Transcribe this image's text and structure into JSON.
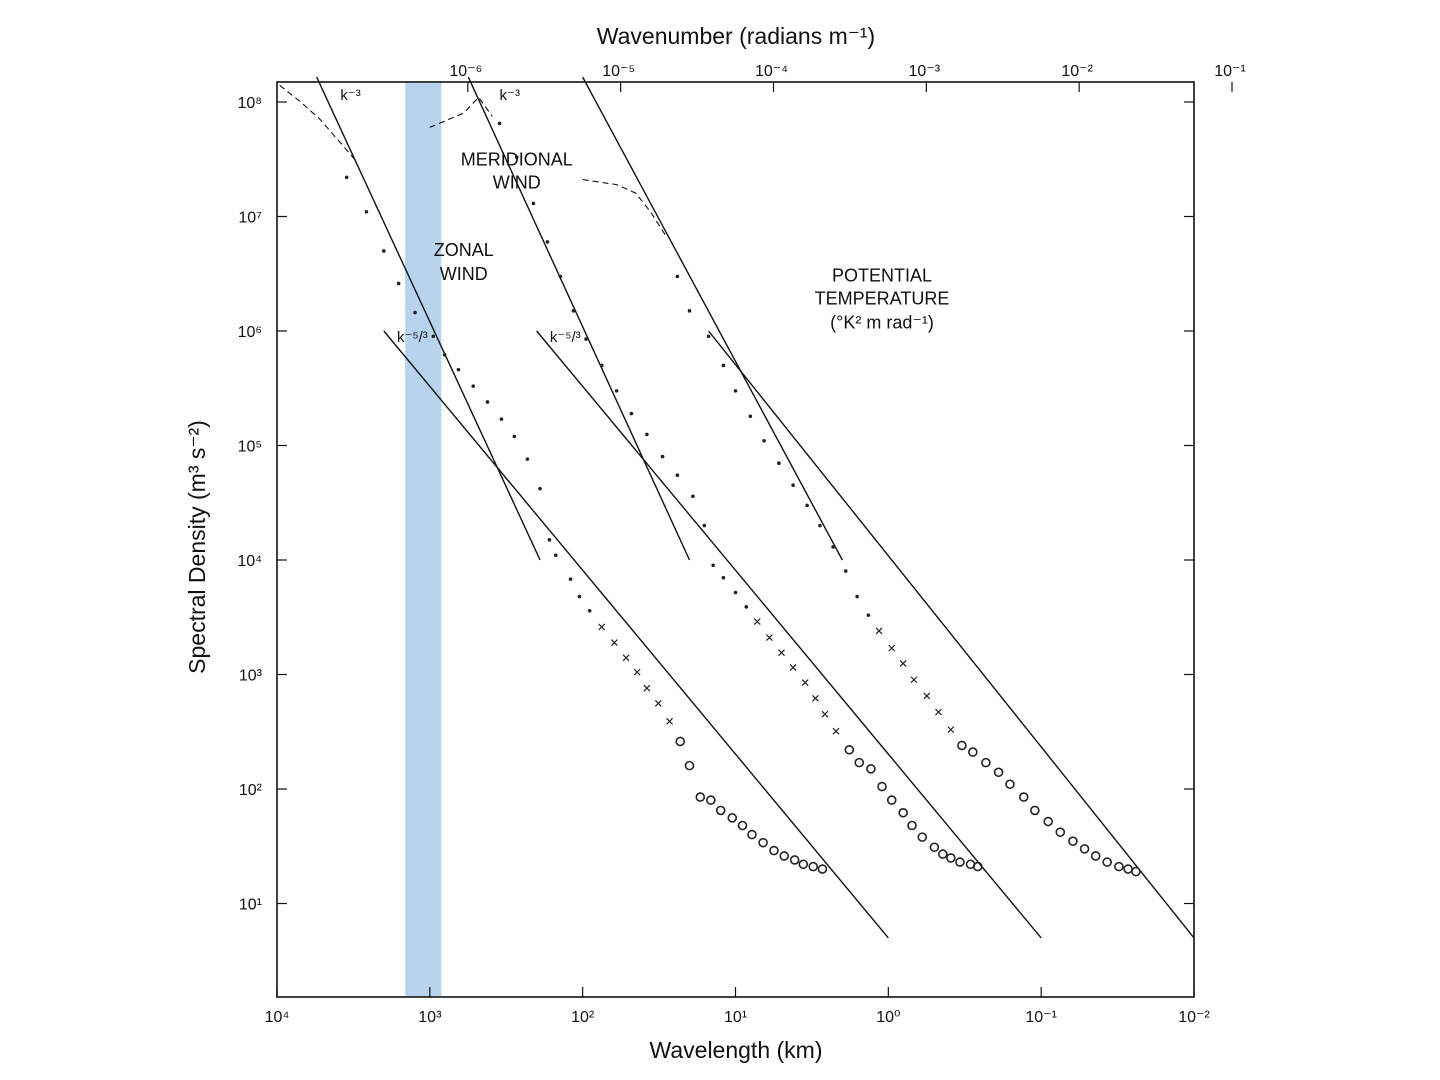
{
  "chart_data": {
    "type": "scatter",
    "title": "",
    "xlabel": "Wavelength (km)",
    "x2label": "Wavenumber (radians m⁻¹)",
    "ylabel": "Spectral Density (m³ s⁻²)",
    "x_scale": "log",
    "x_reversed": true,
    "y_scale": "log",
    "xlim": [
      10000,
      0.01
    ],
    "ylim": [
      1.5,
      160000000
    ],
    "grid": false,
    "x_ticks": [
      "10⁴",
      "10³",
      "10²",
      "10¹",
      "10⁰",
      "10⁻¹",
      "10⁻²"
    ],
    "y_ticks": [
      "10¹",
      "10²",
      "10³",
      "10⁴",
      "10⁵",
      "10⁶",
      "10⁷",
      "10⁸"
    ],
    "x2_ticks": [
      "10⁻⁶",
      "10⁻⁵",
      "10⁻⁴",
      "10⁻³",
      "10⁻²",
      "10⁻¹"
    ],
    "highlight_band": {
      "x_range": [
        1450,
        840
      ],
      "color": "#b7d3ee"
    },
    "annotations": [
      {
        "text": "ZONAL",
        "at": [
          600,
          4500000
        ]
      },
      {
        "text": "WIND",
        "at": [
          600,
          2800000
        ]
      },
      {
        "text": "MERIDIONAL",
        "at": [
          270,
          28000000
        ]
      },
      {
        "text": "WIND",
        "at": [
          270,
          17500000
        ]
      },
      {
        "text": "POTENTIAL",
        "at": [
          1.1,
          2700000
        ]
      },
      {
        "text": "TEMPERATURE",
        "at": [
          1.1,
          1700000
        ]
      },
      {
        "text": "(°K² m rad⁻¹)",
        "at": [
          1.1,
          1050000
        ]
      },
      {
        "text": "k⁻³",
        "at": [
          3300,
          1050000000
        ]
      },
      {
        "text": "k⁻³",
        "at": [
          300,
          1050000000
        ]
      },
      {
        "text": "k⁻⁵/³",
        "at": [
          1300,
          800000
        ]
      },
      {
        "text": "k⁻⁵/³",
        "at": [
          130,
          800000
        ]
      }
    ],
    "reference_lines": [
      {
        "name": "k⁻³",
        "x": [
          5500,
          190
        ],
        "y": [
          165000000,
          10000
        ]
      },
      {
        "name": "k⁻³",
        "x": [
          560,
          20
        ],
        "y": [
          165000000,
          10000
        ]
      },
      {
        "name": "k⁻³",
        "x": [
          100,
          2
        ],
        "y": [
          165000000,
          10000
        ]
      },
      {
        "name": "k⁻⁵/³",
        "x": [
          2000,
          1
        ],
        "y": [
          1000000,
          5
        ]
      },
      {
        "name": "k⁻⁵/³",
        "x": [
          200,
          0.1
        ],
        "y": [
          1000000,
          5
        ]
      },
      {
        "name": "k⁻⁵/³",
        "x": [
          15,
          0.01
        ],
        "y": [
          1000000,
          5
        ]
      }
    ],
    "series": [
      {
        "variable": "zonal wind",
        "low_wavenumber_dashed": {
          "x": [
            9600,
            7000,
            5200,
            3000
          ],
          "y": [
            140000000,
            100000000,
            70000000,
            30000000
          ]
        },
        "points": {
          "x": [
            3500,
            2600,
            2000,
            1600,
            1250,
            950,
            800,
            650,
            520,
            420,
            340,
            280,
            230,
            190,
            165,
            150,
            120,
            105,
            90,
            75,
            62,
            52,
            44,
            38,
            32,
            27,
            23,
            20,
            17,
            14.5,
            12.5,
            10.5,
            9.0,
            7.8,
            6.6,
            5.6,
            4.8,
            4.1,
            3.6,
            3.1,
            2.7
          ],
          "y": [
            22000000,
            11000000,
            5000000,
            2600000,
            1450000,
            900000,
            620000,
            460000,
            330000,
            240000,
            170000,
            120000,
            76000,
            42000,
            15000,
            11000,
            6800,
            4800,
            3600,
            2600,
            1900,
            1400,
            1050,
            760,
            560,
            390,
            260,
            160,
            85,
            80,
            65,
            56,
            48,
            40,
            34,
            29,
            26,
            24,
            22,
            21,
            20
          ]
        }
      },
      {
        "variable": "meridional wind",
        "low_wavenumber_dashed": {
          "x": [
            1000,
            600,
            480,
            390
          ],
          "y": [
            60000000,
            80000000,
            110000000,
            75000000
          ]
        },
        "points": {
          "x": [
            350,
            270,
            210,
            170,
            140,
            115,
            95,
            75,
            60,
            48,
            38,
            30,
            24,
            19,
            16,
            14,
            12,
            10,
            8.5,
            7.2,
            6.0,
            5.0,
            4.2,
            3.5,
            3.0,
            2.6,
            2.2,
            1.8,
            1.55,
            1.3,
            1.1,
            0.95,
            0.8,
            0.7,
            0.6,
            0.5,
            0.44,
            0.39,
            0.34,
            0.29,
            0.26
          ],
          "y": [
            65000000,
            33000000,
            13000000,
            6000000,
            3000000,
            1500000,
            850000,
            500000,
            300000,
            190000,
            125000,
            80000,
            55000,
            36000,
            20000,
            9000,
            7000,
            5200,
            3900,
            2900,
            2100,
            1550,
            1150,
            850,
            620,
            450,
            320,
            220,
            170,
            150,
            105,
            80,
            62,
            48,
            38,
            31,
            27,
            25,
            23,
            22,
            21
          ]
        }
      },
      {
        "variable": "potential temperature",
        "low_wavenumber_dashed": {
          "x": [
            100,
            60,
            45,
            36,
            28
          ],
          "y": [
            21000000,
            19000000,
            16000000,
            11000000,
            6500000
          ]
        },
        "points": {
          "x": [
            24,
            20,
            15,
            12,
            10,
            8,
            6.5,
            5.2,
            4.2,
            3.4,
            2.8,
            2.3,
            1.9,
            1.6,
            1.35,
            1.15,
            0.95,
            0.8,
            0.68,
            0.56,
            0.47,
            0.39,
            0.33,
            0.28,
            0.23,
            0.19,
            0.16,
            0.13,
            0.11,
            0.09,
            0.075,
            0.062,
            0.052,
            0.044,
            0.037,
            0.031,
            0.027,
            0.024
          ],
          "y": [
            3000000,
            1500000,
            900000,
            500000,
            300000,
            180000,
            110000,
            70000,
            45000,
            30000,
            20000,
            13000,
            8000,
            4800,
            3300,
            2400,
            1700,
            1250,
            900,
            650,
            470,
            330,
            240,
            210,
            170,
            140,
            110,
            85,
            65,
            52,
            42,
            35,
            30,
            26,
            23,
            21,
            20,
            19
          ]
        }
      }
    ]
  }
}
